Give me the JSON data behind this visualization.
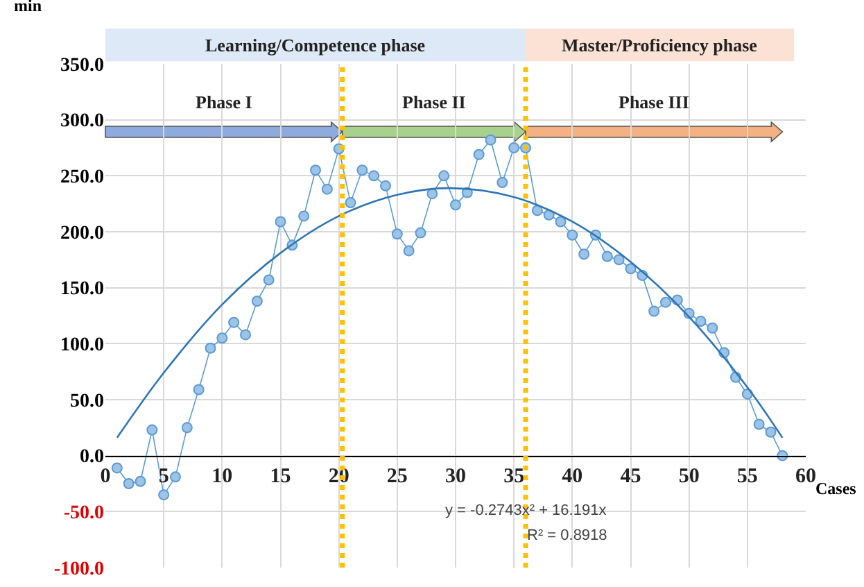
{
  "chart_data": {
    "type": "line",
    "ylabel": "min",
    "xlabel": "Cases",
    "x": [
      1,
      2,
      3,
      4,
      5,
      6,
      7,
      8,
      9,
      10,
      11,
      12,
      13,
      14,
      15,
      16,
      17,
      18,
      19,
      20,
      21,
      22,
      23,
      24,
      25,
      26,
      27,
      28,
      29,
      30,
      31,
      32,
      33,
      34,
      35,
      36,
      37,
      38,
      39,
      40,
      41,
      42,
      43,
      44,
      45,
      46,
      47,
      48,
      49,
      50,
      51,
      52,
      53,
      54,
      55,
      56,
      57,
      58
    ],
    "series": [
      {
        "color": "#5b9bd5",
        "values": [
          -11,
          -25,
          -23,
          23,
          -35,
          -19,
          25,
          59,
          96,
          105,
          119,
          108,
          138,
          157,
          209,
          188,
          214,
          255,
          238,
          274,
          226,
          255,
          250,
          241,
          198,
          183,
          199,
          234,
          250,
          224,
          235,
          269,
          282,
          244,
          275,
          275,
          219,
          215,
          209,
          197,
          180,
          197,
          178,
          175,
          167,
          161,
          129,
          137,
          139,
          127,
          120,
          114,
          92,
          70,
          55,
          28,
          21,
          0
        ]
      },
      {
        "type": "line",
        "marker": "none",
        "color": "#2e75b6",
        "x": [
          1,
          5,
          10,
          15,
          20,
          25,
          29.5,
          35,
          40,
          45,
          50,
          55,
          58
        ],
        "values": [
          16,
          74,
          135,
          181,
          214,
          233,
          239,
          231,
          209,
          173,
          124,
          61,
          16
        ]
      }
    ],
    "marker": "circle",
    "grid": true,
    "xlim": [
      0,
      60
    ],
    "xticks": [
      0,
      5,
      10,
      15,
      20,
      25,
      30,
      35,
      40,
      45,
      50,
      55,
      60
    ],
    "ylim": [
      -100,
      350
    ],
    "yticks": [
      {
        "value": -100,
        "label": "-100.0"
      },
      {
        "value": -50,
        "label": "-50.0"
      },
      {
        "value": 0,
        "label": "0.0"
      },
      {
        "value": 50,
        "label": "50.0"
      },
      {
        "value": 100,
        "label": "100.0"
      },
      {
        "value": 150,
        "label": "150.0"
      },
      {
        "value": 200,
        "label": "200.0"
      },
      {
        "value": 250,
        "label": "250.0"
      },
      {
        "value": 300,
        "label": "300.0"
      },
      {
        "value": 350,
        "label": "350.0"
      }
    ],
    "ref_lines": [
      {
        "axis": "x",
        "value": 20.3,
        "color": "#ffc000",
        "line_style": "dotted"
      },
      {
        "axis": "x",
        "value": 36,
        "color": "#ffc000",
        "line_style": "dotted"
      }
    ],
    "annotations": [
      "Learning/Competence phase",
      "Master/Proficiency phase",
      "Phase I",
      "Phase II",
      "Phase III",
      "y = -0.2743x² + 16.191x",
      "R² = 0.8918"
    ]
  }
}
